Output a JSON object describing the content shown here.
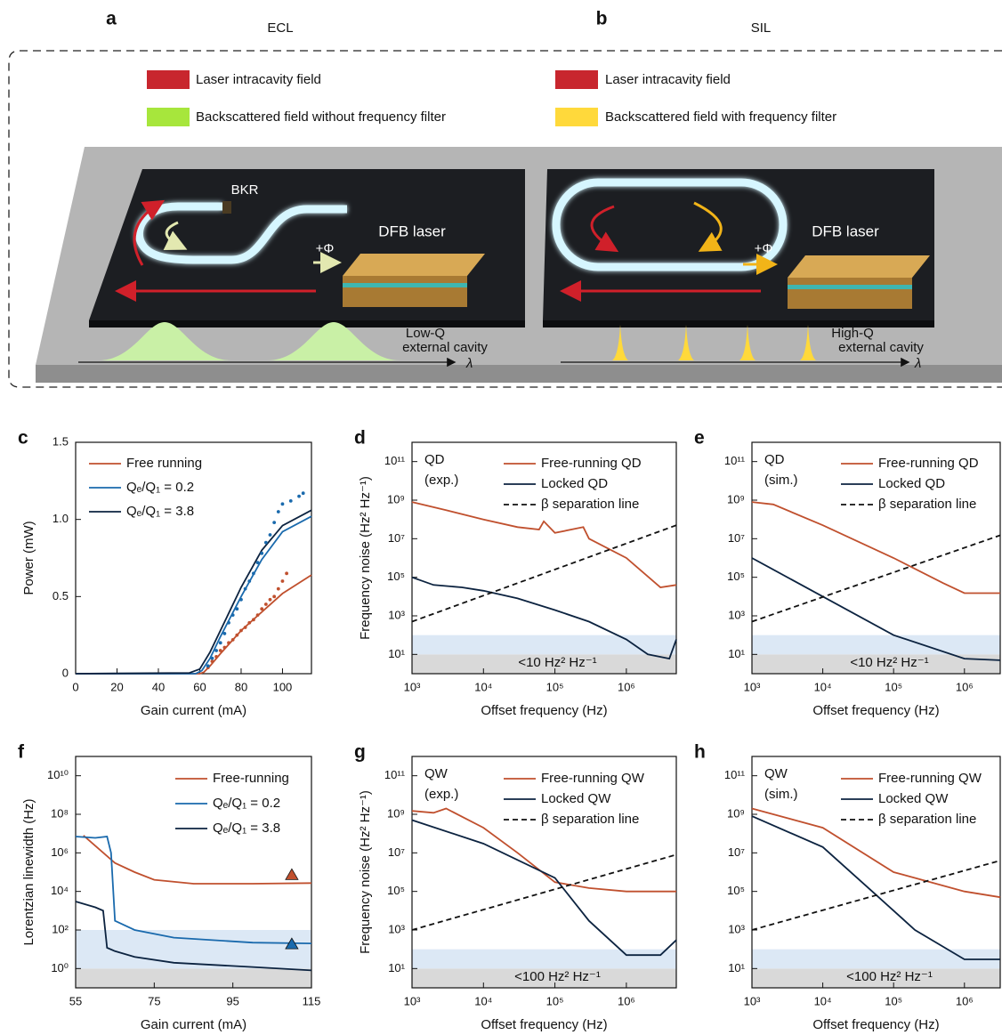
{
  "diagram": {
    "panels": [
      {
        "letter": "a",
        "title": "ECL",
        "legend": [
          "Laser intracavity field",
          "Backscattered field without frequency filter"
        ],
        "labels": [
          "BKR",
          "+Φ",
          "DFB laser",
          "Low-Q",
          "external cavity",
          "λ"
        ]
      },
      {
        "letter": "b",
        "title": "SIL",
        "legend": [
          "Laser intracavity field",
          "Backscattered field with frequency filter"
        ],
        "labels": [
          "+Φ",
          "DFB laser",
          "High-Q",
          "external cavity",
          "λ"
        ]
      }
    ]
  },
  "chart_data": [
    {
      "type": "line",
      "panel": "c",
      "xlabel": "Gain current (mA)",
      "ylabel": "Power (mW)",
      "xlim": [
        0,
        114
      ],
      "ylim": [
        0,
        1.5
      ],
      "xticks": [
        0,
        20,
        40,
        60,
        80,
        100
      ],
      "yticks": [
        0,
        0.5,
        {
          "value": 1,
          "label": "1.0"
        },
        1.5
      ],
      "series": [
        {
          "name": "Free running",
          "color": "#c0502e",
          "x": [
            0,
            60,
            62,
            65,
            70,
            80,
            90,
            100,
            114
          ],
          "values": [
            0,
            0,
            0.01,
            0.05,
            0.13,
            0.28,
            0.4,
            0.52,
            0.64
          ]
        },
        {
          "name": "Qₑ/Q₁ = 0.2",
          "color": "#1a6aad",
          "x": [
            0,
            58,
            61,
            65,
            70,
            80,
            90,
            100,
            114
          ],
          "values": [
            0,
            0,
            0.02,
            0.1,
            0.24,
            0.5,
            0.74,
            0.92,
            1.02
          ]
        },
        {
          "name": "Qₑ/Q₁ = 3.8",
          "color": "#0c2340",
          "x": [
            0,
            55,
            60,
            65,
            70,
            80,
            90,
            100,
            114
          ],
          "values": [
            0,
            0.005,
            0.03,
            0.14,
            0.28,
            0.56,
            0.8,
            0.96,
            1.06
          ]
        }
      ],
      "points": [
        {
          "color": "#c0502e",
          "marker": "dot",
          "x": [
            64,
            66,
            68,
            70,
            72,
            74,
            76,
            78,
            80,
            82,
            84,
            86,
            88,
            90,
            92,
            94,
            96,
            98,
            100,
            102
          ],
          "values": [
            0.04,
            0.08,
            0.11,
            0.15,
            0.17,
            0.2,
            0.22,
            0.25,
            0.28,
            0.3,
            0.33,
            0.35,
            0.38,
            0.42,
            0.45,
            0.48,
            0.5,
            0.55,
            0.6,
            0.65
          ]
        },
        {
          "color": "#1a6aad",
          "marker": "dot",
          "x": [
            64,
            66,
            68,
            70,
            72,
            74,
            76,
            78,
            80,
            82,
            84,
            86,
            88,
            90,
            92,
            94,
            96,
            98,
            100,
            104,
            108,
            110
          ],
          "values": [
            0.05,
            0.1,
            0.15,
            0.2,
            0.26,
            0.33,
            0.38,
            0.42,
            0.48,
            0.55,
            0.6,
            0.65,
            0.72,
            0.78,
            0.85,
            0.9,
            0.98,
            1.05,
            1.1,
            1.12,
            1.15,
            1.17
          ]
        }
      ]
    },
    {
      "type": "line",
      "panel": "d",
      "xlabel": "Offset frequency (Hz)",
      "ylabel": "Frequency noise (Hz² Hz⁻¹)",
      "xscale": "log",
      "yscale": "log",
      "notes": [
        "QD",
        "(exp.)"
      ],
      "band_label": "<10 Hz² Hz⁻¹",
      "xlim": [
        1000,
        5000000
      ],
      "ylim": [
        1,
        1000000000000
      ],
      "xticks": [
        {
          "value": 1000,
          "label": "10³"
        },
        {
          "value": 10000,
          "label": "10⁴"
        },
        {
          "value": 100000,
          "label": "10⁵"
        },
        {
          "value": 1000000,
          "label": "10⁶"
        }
      ],
      "yticks": [
        {
          "value": 10,
          "label": "10¹"
        },
        {
          "value": 1000,
          "label": "10³"
        },
        {
          "value": 100000,
          "label": "10⁵"
        },
        {
          "value": 10000000,
          "label": "10⁷"
        },
        {
          "value": 1000000000,
          "label": "10⁹"
        },
        {
          "value": 100000000000,
          "label": "10¹¹"
        }
      ],
      "bands": [
        {
          "from": 1,
          "to": 10,
          "color": "#d9d9d9"
        },
        {
          "from": 10,
          "to": 100,
          "color": "#dce8f5"
        }
      ],
      "series": [
        {
          "name": "Free-running QD",
          "color": "#c0502e",
          "x": [
            1000,
            3000,
            10000,
            30000,
            60000,
            70000,
            100000,
            250000,
            300000,
            1000000,
            3000000,
            5000000
          ],
          "values": [
            800000000,
            300000000,
            100000000,
            40000000,
            30000000,
            80000000,
            20000000,
            40000000,
            10000000,
            1000000,
            30000,
            40000
          ]
        },
        {
          "name": "Locked QD",
          "color": "#0c2340",
          "x": [
            1000,
            2000,
            5000,
            10000,
            30000,
            100000,
            300000,
            1000000,
            2000000,
            4000000,
            5000000
          ],
          "values": [
            100000,
            40000,
            30000,
            20000,
            8000,
            2000,
            500,
            60,
            10,
            6,
            60
          ]
        },
        {
          "name": "β separation line",
          "color": "#111111",
          "dashed": true,
          "x": [
            1000,
            5000000
          ],
          "values": [
            500,
            50000000
          ]
        }
      ]
    },
    {
      "type": "line",
      "panel": "e",
      "xlabel": "Offset frequency (Hz)",
      "xscale": "log",
      "yscale": "log",
      "notes": [
        "QD",
        "(sim.)"
      ],
      "band_label": "<10 Hz² Hz⁻¹",
      "xlim": [
        1000,
        3200000
      ],
      "ylim": [
        1,
        1000000000000
      ],
      "xticks": [
        {
          "value": 1000,
          "label": "10³"
        },
        {
          "value": 10000,
          "label": "10⁴"
        },
        {
          "value": 100000,
          "label": "10⁵"
        },
        {
          "value": 1000000,
          "label": "10⁶"
        }
      ],
      "yticks": [
        {
          "value": 10,
          "label": "10¹"
        },
        {
          "value": 1000,
          "label": "10³"
        },
        {
          "value": 100000,
          "label": "10⁵"
        },
        {
          "value": 10000000,
          "label": "10⁷"
        },
        {
          "value": 1000000000,
          "label": "10⁹"
        },
        {
          "value": 100000000000,
          "label": "10¹¹"
        }
      ],
      "bands": [
        {
          "from": 1,
          "to": 10,
          "color": "#d9d9d9"
        },
        {
          "from": 10,
          "to": 100,
          "color": "#dce8f5"
        }
      ],
      "series": [
        {
          "name": "Free-running QD",
          "color": "#c0502e",
          "x": [
            1000,
            2000,
            10000,
            100000,
            500000,
            1000000,
            3200000
          ],
          "values": [
            800000000,
            600000000,
            50000000,
            1000000,
            50000,
            15000,
            15000
          ]
        },
        {
          "name": "Locked QD",
          "color": "#0c2340",
          "x": [
            1000,
            10000,
            100000,
            1000000,
            3200000
          ],
          "values": [
            1000000,
            10000,
            100,
            6,
            5
          ]
        },
        {
          "name": "β separation line",
          "color": "#111111",
          "dashed": true,
          "x": [
            1000,
            3200000
          ],
          "values": [
            500,
            15000000
          ]
        }
      ]
    },
    {
      "type": "line",
      "panel": "f",
      "xlabel": "Gain current (mA)",
      "ylabel": "Lorentzian linewidth (Hz)",
      "yscale": "log",
      "xlim": [
        55,
        115
      ],
      "ylim": [
        0.1,
        100000000000
      ],
      "xticks": [
        55,
        75,
        95,
        115
      ],
      "yticks": [
        {
          "value": 1,
          "label": "10⁰"
        },
        {
          "value": 100,
          "label": "10²"
        },
        {
          "value": 10000,
          "label": "10⁴"
        },
        {
          "value": 1000000,
          "label": "10⁶"
        },
        {
          "value": 100000000,
          "label": "10⁸"
        },
        {
          "value": 10000000000,
          "label": "10¹⁰"
        }
      ],
      "bands": [
        {
          "from": 0.1,
          "to": 1,
          "color": "#d9d9d9"
        },
        {
          "from": 1,
          "to": 100,
          "color": "#dce8f5"
        }
      ],
      "series": [
        {
          "name": "Free-running",
          "color": "#c0502e",
          "x": [
            57,
            65,
            70,
            75,
            85,
            100,
            115
          ],
          "values": [
            8000000,
            300000,
            100000,
            40000,
            25000,
            25000,
            27000
          ]
        },
        {
          "name": "Qₑ/Q₁ = 0.2",
          "color": "#1a6aad",
          "x": [
            55,
            60,
            63,
            64,
            65,
            70,
            80,
            100,
            115
          ],
          "values": [
            7000000,
            6000000,
            7000000,
            1000000,
            300,
            100,
            40,
            22,
            20
          ]
        },
        {
          "name": "Qₑ/Q₁ = 3.8",
          "color": "#0c2340",
          "x": [
            55,
            60,
            62,
            63,
            65,
            70,
            80,
            100,
            115
          ],
          "values": [
            3000,
            1500,
            1000,
            12,
            8,
            4,
            2,
            1.2,
            0.8
          ]
        }
      ],
      "points": [
        {
          "color": "#c0502e",
          "marker": "triangle",
          "x": [
            110
          ],
          "values": [
            70000
          ]
        },
        {
          "color": "#1a6aad",
          "marker": "triangle",
          "x": [
            110
          ],
          "values": [
            18
          ]
        }
      ]
    },
    {
      "type": "line",
      "panel": "g",
      "xlabel": "Offset frequency (Hz)",
      "ylabel": "Frequency noise (Hz² Hz⁻¹)",
      "xscale": "log",
      "yscale": "log",
      "notes": [
        "QW",
        "(exp.)"
      ],
      "band_label": "<100 Hz² Hz⁻¹",
      "xlim": [
        1000,
        5000000
      ],
      "ylim": [
        1,
        1000000000000
      ],
      "xticks": [
        {
          "value": 1000,
          "label": "10³"
        },
        {
          "value": 10000,
          "label": "10⁴"
        },
        {
          "value": 100000,
          "label": "10⁵"
        },
        {
          "value": 1000000,
          "label": "10⁶"
        }
      ],
      "yticks": [
        {
          "value": 10,
          "label": "10¹"
        },
        {
          "value": 1000,
          "label": "10³"
        },
        {
          "value": 100000,
          "label": "10⁵"
        },
        {
          "value": 10000000,
          "label": "10⁷"
        },
        {
          "value": 1000000000,
          "label": "10⁹"
        },
        {
          "value": 100000000000,
          "label": "10¹¹"
        }
      ],
      "bands": [
        {
          "from": 1,
          "to": 10,
          "color": "#d9d9d9"
        },
        {
          "from": 10,
          "to": 100,
          "color": "#dce8f5"
        }
      ],
      "series": [
        {
          "name": "Free-running QW",
          "color": "#c0502e",
          "x": [
            1000,
            2000,
            3000,
            10000,
            30000,
            100000,
            300000,
            1000000,
            5000000
          ],
          "values": [
            1500000000,
            1200000000,
            2000000000,
            200000000,
            10000000,
            300000,
            150000,
            100000,
            100000
          ]
        },
        {
          "name": "Locked QW",
          "color": "#0c2340",
          "x": [
            1000,
            10000,
            100000,
            300000,
            1000000,
            3000000,
            5000000
          ],
          "values": [
            500000000,
            30000000,
            500000,
            3000,
            50,
            50,
            300
          ]
        },
        {
          "name": "β separation line",
          "color": "#111111",
          "dashed": true,
          "x": [
            1000,
            5000000
          ],
          "values": [
            1000,
            8000000
          ]
        }
      ]
    },
    {
      "type": "line",
      "panel": "h",
      "xlabel": "Offset frequency (Hz)",
      "xscale": "log",
      "yscale": "log",
      "notes": [
        "QW",
        "(sim.)"
      ],
      "band_label": "<100 Hz² Hz⁻¹",
      "xlim": [
        1000,
        3200000
      ],
      "ylim": [
        1,
        1000000000000
      ],
      "xticks": [
        {
          "value": 1000,
          "label": "10³"
        },
        {
          "value": 10000,
          "label": "10⁴"
        },
        {
          "value": 100000,
          "label": "10⁵"
        },
        {
          "value": 1000000,
          "label": "10⁶"
        }
      ],
      "yticks": [
        {
          "value": 10,
          "label": "10¹"
        },
        {
          "value": 1000,
          "label": "10³"
        },
        {
          "value": 100000,
          "label": "10⁵"
        },
        {
          "value": 10000000,
          "label": "10⁷"
        },
        {
          "value": 1000000000,
          "label": "10⁹"
        },
        {
          "value": 100000000000,
          "label": "10¹¹"
        }
      ],
      "bands": [
        {
          "from": 1,
          "to": 10,
          "color": "#d9d9d9"
        },
        {
          "from": 10,
          "to": 100,
          "color": "#dce8f5"
        }
      ],
      "series": [
        {
          "name": "Free-running QW",
          "color": "#c0502e",
          "x": [
            1000,
            10000,
            100000,
            1000000,
            3200000
          ],
          "values": [
            2000000000,
            200000000,
            1000000,
            100000,
            50000
          ]
        },
        {
          "name": "Locked QW",
          "color": "#0c2340",
          "x": [
            1000,
            10000,
            50000,
            200000,
            1000000,
            3200000
          ],
          "values": [
            800000000,
            20000000,
            100000,
            1000,
            30,
            30
          ]
        },
        {
          "name": "β separation line",
          "color": "#111111",
          "dashed": true,
          "x": [
            1000,
            3200000
          ],
          "values": [
            1000,
            4000000
          ]
        }
      ]
    }
  ]
}
